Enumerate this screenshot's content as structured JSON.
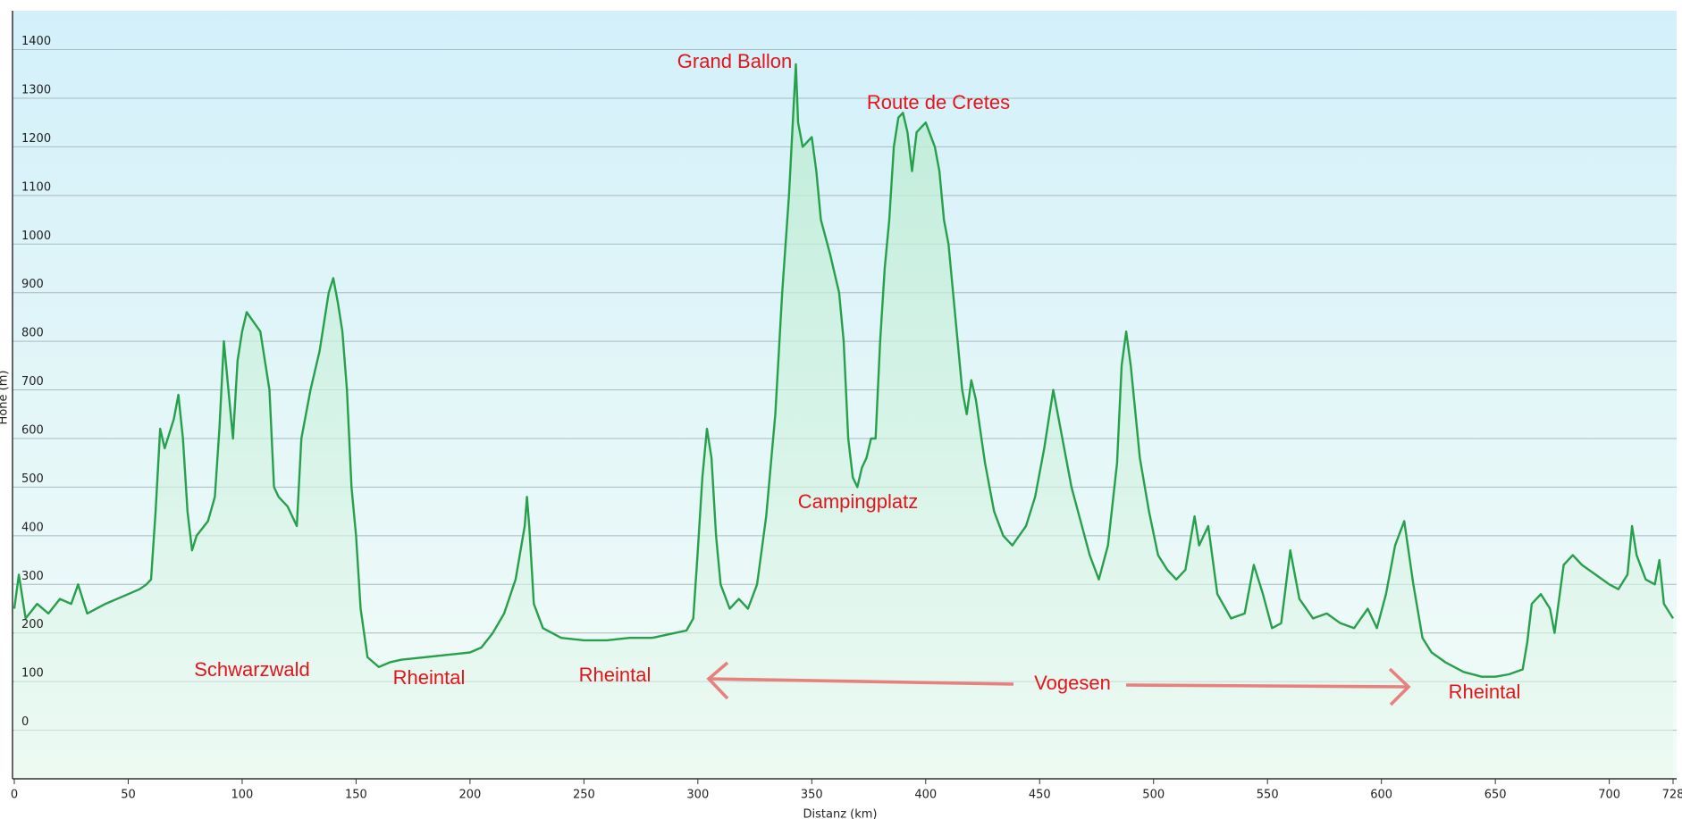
{
  "chart_data": {
    "type": "area",
    "x_label": "Distanz (km)",
    "y_label": "Höhe (m)",
    "color": "#27a04b",
    "fill": "#c8f0d6",
    "grid": true,
    "xlim": [
      0,
      728
    ],
    "xticks": [
      0,
      50,
      100,
      150,
      200,
      250,
      300,
      350,
      400,
      450,
      500,
      550,
      600,
      650,
      700,
      728
    ],
    "ylim": [
      -100,
      1480
    ],
    "yticks": [
      0,
      100,
      200,
      300,
      400,
      500,
      600,
      700,
      800,
      900,
      1000,
      1100,
      1200,
      1300,
      1400
    ],
    "annotations": [
      "Grand Ballon",
      "Route de Cretes",
      "Campingplatz",
      "Schwarzwald",
      "Rheintal",
      "Rheintal",
      "Vogesen",
      "Rheintal"
    ],
    "x": [
      0,
      2,
      5,
      10,
      15,
      20,
      25,
      28,
      32,
      40,
      50,
      55,
      58,
      60,
      62,
      64,
      66,
      70,
      72,
      74,
      76,
      78,
      80,
      85,
      88,
      90,
      92,
      94,
      96,
      98,
      100,
      102,
      105,
      108,
      110,
      112,
      114,
      116,
      120,
      124,
      126,
      128,
      130,
      134,
      138,
      140,
      142,
      144,
      146,
      148,
      150,
      152,
      155,
      160,
      165,
      170,
      180,
      190,
      200,
      205,
      210,
      215,
      220,
      224,
      225,
      226,
      228,
      232,
      240,
      250,
      260,
      270,
      280,
      290,
      295,
      298,
      300,
      302,
      304,
      306,
      308,
      310,
      314,
      318,
      322,
      326,
      330,
      334,
      337,
      340,
      342,
      343,
      344,
      346,
      350,
      352,
      354,
      358,
      362,
      364,
      366,
      368,
      370,
      372,
      374,
      376,
      378,
      380,
      382,
      384,
      386,
      388,
      390,
      392,
      394,
      396,
      398,
      400,
      404,
      406,
      408,
      410,
      412,
      414,
      416,
      418,
      420,
      422,
      426,
      430,
      434,
      438,
      444,
      448,
      452,
      456,
      460,
      464,
      468,
      472,
      476,
      480,
      484,
      486,
      488,
      490,
      494,
      498,
      502,
      506,
      510,
      514,
      518,
      520,
      524,
      528,
      534,
      540,
      544,
      548,
      552,
      556,
      560,
      564,
      570,
      576,
      582,
      588,
      594,
      598,
      602,
      606,
      610,
      614,
      618,
      622,
      628,
      636,
      644,
      650,
      656,
      662,
      664,
      666,
      670,
      674,
      676,
      680,
      684,
      688,
      694,
      700,
      704,
      708,
      710,
      712,
      716,
      720,
      722,
      724,
      728
    ],
    "values": [
      250,
      320,
      230,
      260,
      240,
      270,
      260,
      300,
      240,
      260,
      280,
      290,
      300,
      310,
      450,
      620,
      580,
      640,
      690,
      600,
      450,
      370,
      400,
      430,
      480,
      620,
      800,
      700,
      600,
      760,
      820,
      860,
      840,
      820,
      760,
      700,
      500,
      480,
      460,
      420,
      600,
      650,
      700,
      780,
      900,
      930,
      880,
      820,
      700,
      500,
      400,
      250,
      150,
      130,
      140,
      145,
      150,
      155,
      160,
      170,
      200,
      240,
      310,
      420,
      480,
      420,
      260,
      210,
      190,
      185,
      185,
      190,
      190,
      200,
      205,
      230,
      370,
      520,
      620,
      560,
      400,
      300,
      250,
      270,
      250,
      300,
      440,
      650,
      900,
      1100,
      1280,
      1370,
      1250,
      1200,
      1220,
      1150,
      1050,
      980,
      900,
      800,
      600,
      520,
      500,
      540,
      560,
      600,
      600,
      800,
      950,
      1050,
      1200,
      1260,
      1270,
      1230,
      1150,
      1230,
      1240,
      1250,
      1200,
      1150,
      1050,
      1000,
      900,
      800,
      700,
      650,
      720,
      680,
      550,
      450,
      400,
      380,
      420,
      480,
      580,
      700,
      600,
      500,
      430,
      360,
      310,
      380,
      550,
      750,
      820,
      750,
      560,
      450,
      360,
      330,
      310,
      330,
      440,
      380,
      420,
      280,
      230,
      240,
      340,
      280,
      210,
      220,
      370,
      270,
      230,
      240,
      220,
      210,
      250,
      210,
      280,
      380,
      430,
      300,
      190,
      160,
      140,
      120,
      110,
      110,
      115,
      125,
      180,
      260,
      280,
      250,
      200,
      340,
      360,
      340,
      320,
      300,
      290,
      320,
      420,
      360,
      310,
      300,
      350,
      260,
      230
    ]
  }
}
